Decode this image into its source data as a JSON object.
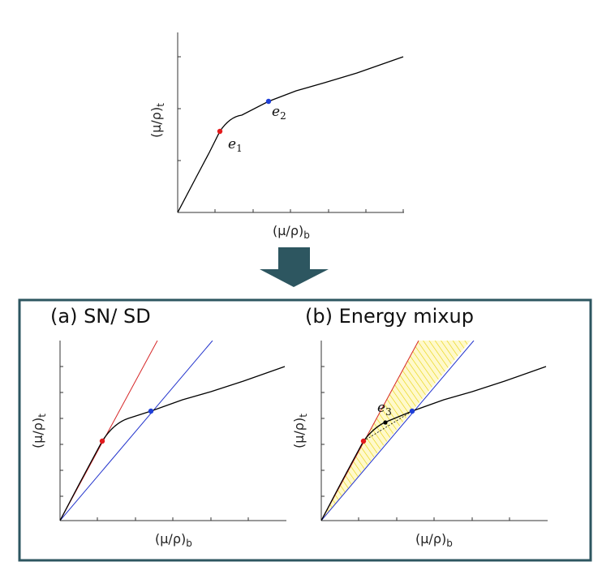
{
  "colors": {
    "curve": "#000000",
    "e1_point": "#e31a1c",
    "e2_point": "#1f3fd8",
    "red_line": "#d62728",
    "blue_line": "#2233cc",
    "frame": "#2d5660",
    "arrow": "#2d5660",
    "hatch": "#e6d200",
    "hatch_fill": "#fff9cc"
  },
  "top_plot": {
    "ylabel_main": "(μ/ρ)",
    "ylabel_sub": "t",
    "xlabel_main": "(μ/ρ)",
    "xlabel_sub": "b",
    "point1_label_main": "e",
    "point1_label_sub": "1",
    "point2_label_main": "e",
    "point2_label_sub": "2"
  },
  "panel_a": {
    "title": "(a) SN/ SD",
    "ylabel_main": "(μ/ρ)",
    "ylabel_sub": "t",
    "xlabel_main": "(μ/ρ)",
    "xlabel_sub": "b"
  },
  "panel_b": {
    "title": "(b) Energy mixup",
    "ylabel_main": "(μ/ρ)",
    "ylabel_sub": "t",
    "xlabel_main": "(μ/ρ)",
    "xlabel_sub": "b",
    "point3_label_main": "e",
    "point3_label_sub": "3"
  }
}
